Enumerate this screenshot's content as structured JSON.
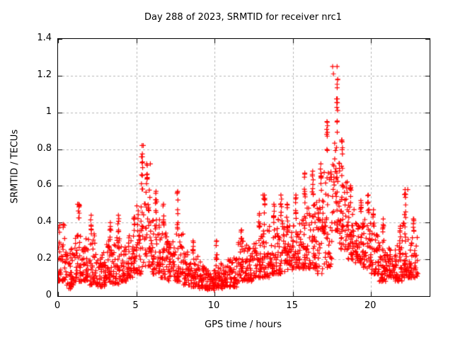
{
  "page": {
    "background": "#ffffff",
    "text_color": "#000000"
  },
  "chart_data": {
    "type": "scatter",
    "title": "Day 288 of 2023, SRMTID for receiver nrc1",
    "xlabel": "GPS time / hours",
    "ylabel": "SRMTID / TECUs",
    "xlim": [
      0,
      23.75
    ],
    "ylim": [
      0,
      1.4
    ],
    "xticks": [
      0,
      5,
      10,
      15,
      20
    ],
    "xtick_labels": [
      "0",
      "5",
      "10",
      "15",
      "20"
    ],
    "yticks": [
      0,
      0.2,
      0.4,
      0.6,
      0.8,
      1,
      1.2,
      1.4
    ],
    "ytick_labels": [
      "0",
      "0.2",
      "0.4",
      "0.6",
      "0.8",
      "1",
      "1.2",
      "1.4"
    ],
    "legend": "none",
    "grid": {
      "show": true,
      "style": "dashed",
      "color": "#b4b4b4",
      "at_xticks": [
        5,
        10,
        15,
        20
      ],
      "at_yticks": [
        0.2,
        0.4,
        0.6,
        0.8,
        1,
        1.2
      ]
    },
    "marker": {
      "shape": "plus",
      "color": "#ff0000",
      "size": 7,
      "line_width": 1.2
    },
    "series_name": "SRMTID",
    "data_time_span_hours": [
      0,
      23.0
    ],
    "notable_points": [
      {
        "t": 17.55,
        "v": 1.25,
        "note": "daily maximum"
      },
      {
        "t": 17.6,
        "v": 1.21
      },
      {
        "t": 5.45,
        "v": 0.82,
        "note": "morning peak"
      },
      {
        "t": 5.9,
        "v": 0.72
      },
      {
        "t": 22.35,
        "v": 0.58,
        "note": "late spike"
      },
      {
        "t": 13.1,
        "v": 0.55
      },
      {
        "t": 1.25,
        "v": 0.5
      }
    ],
    "envelope_bins": [
      {
        "t": 0.25,
        "lo": 0.08,
        "hi": 0.4,
        "n": 46
      },
      {
        "t": 0.75,
        "lo": 0.04,
        "hi": 0.26,
        "n": 42
      },
      {
        "t": 1.25,
        "lo": 0.08,
        "hi": 0.36,
        "peak": 0.5,
        "n": 42
      },
      {
        "t": 1.75,
        "lo": 0.08,
        "hi": 0.32,
        "n": 40
      },
      {
        "t": 2.25,
        "lo": 0.06,
        "hi": 0.34,
        "peak": 0.44,
        "n": 40
      },
      {
        "t": 2.75,
        "lo": 0.05,
        "hi": 0.26,
        "n": 40
      },
      {
        "t": 3.25,
        "lo": 0.07,
        "hi": 0.3,
        "peak": 0.4,
        "n": 40
      },
      {
        "t": 3.75,
        "lo": 0.06,
        "hi": 0.34,
        "peak": 0.44,
        "n": 40
      },
      {
        "t": 4.25,
        "lo": 0.08,
        "hi": 0.28,
        "n": 40
      },
      {
        "t": 4.75,
        "lo": 0.1,
        "hi": 0.34,
        "peak": 0.43,
        "n": 40
      },
      {
        "t": 5.25,
        "lo": 0.12,
        "hi": 0.52,
        "peak": 0.82,
        "n": 44
      },
      {
        "t": 5.75,
        "lo": 0.16,
        "hi": 0.58,
        "peak": 0.72,
        "n": 44
      },
      {
        "t": 6.25,
        "lo": 0.12,
        "hi": 0.44,
        "peak": 0.57,
        "n": 42
      },
      {
        "t": 6.75,
        "lo": 0.1,
        "hi": 0.36,
        "peak": 0.5,
        "n": 40
      },
      {
        "t": 7.25,
        "lo": 0.08,
        "hi": 0.3,
        "n": 40
      },
      {
        "t": 7.75,
        "lo": 0.08,
        "hi": 0.34,
        "peak": 0.57,
        "n": 40
      },
      {
        "t": 8.25,
        "lo": 0.06,
        "hi": 0.24,
        "n": 40
      },
      {
        "t": 8.75,
        "lo": 0.05,
        "hi": 0.22,
        "peak": 0.3,
        "n": 40
      },
      {
        "t": 9.25,
        "lo": 0.04,
        "hi": 0.19,
        "n": 40
      },
      {
        "t": 9.75,
        "lo": 0.03,
        "hi": 0.16,
        "n": 40
      },
      {
        "t": 10.25,
        "lo": 0.04,
        "hi": 0.18,
        "peak": 0.3,
        "n": 40
      },
      {
        "t": 10.75,
        "lo": 0.05,
        "hi": 0.2,
        "n": 40
      },
      {
        "t": 11.25,
        "lo": 0.05,
        "hi": 0.22,
        "n": 40
      },
      {
        "t": 11.75,
        "lo": 0.08,
        "hi": 0.3,
        "peak": 0.36,
        "n": 40
      },
      {
        "t": 12.25,
        "lo": 0.08,
        "hi": 0.28,
        "n": 40
      },
      {
        "t": 12.75,
        "lo": 0.1,
        "hi": 0.34,
        "peak": 0.45,
        "n": 40
      },
      {
        "t": 13.25,
        "lo": 0.1,
        "hi": 0.36,
        "peak": 0.55,
        "n": 40
      },
      {
        "t": 13.75,
        "lo": 0.12,
        "hi": 0.38,
        "peak": 0.5,
        "n": 40
      },
      {
        "t": 14.25,
        "lo": 0.12,
        "hi": 0.42,
        "peak": 0.55,
        "n": 42
      },
      {
        "t": 14.75,
        "lo": 0.14,
        "hi": 0.4,
        "peak": 0.5,
        "n": 42
      },
      {
        "t": 15.25,
        "lo": 0.15,
        "hi": 0.44,
        "peak": 0.55,
        "n": 42
      },
      {
        "t": 15.75,
        "lo": 0.15,
        "hi": 0.48,
        "peak": 0.67,
        "n": 42
      },
      {
        "t": 16.25,
        "lo": 0.15,
        "hi": 0.5,
        "peak": 0.68,
        "n": 42
      },
      {
        "t": 16.75,
        "lo": 0.12,
        "hi": 0.54,
        "peak": 0.72,
        "n": 42
      },
      {
        "t": 17.25,
        "lo": 0.15,
        "hi": 0.75,
        "peak": 0.95,
        "n": 44
      },
      {
        "t": 17.75,
        "lo": 0.35,
        "hi": 0.85,
        "peak": 1.25,
        "n": 46
      },
      {
        "t": 18.25,
        "lo": 0.25,
        "hi": 0.68,
        "peak": 0.85,
        "n": 44
      },
      {
        "t": 18.75,
        "lo": 0.2,
        "hi": 0.5,
        "peak": 0.6,
        "n": 42
      },
      {
        "t": 19.25,
        "lo": 0.18,
        "hi": 0.45,
        "peak": 0.52,
        "n": 42
      },
      {
        "t": 19.75,
        "lo": 0.15,
        "hi": 0.42,
        "peak": 0.55,
        "n": 40
      },
      {
        "t": 20.25,
        "lo": 0.12,
        "hi": 0.35,
        "peak": 0.47,
        "n": 40
      },
      {
        "t": 20.75,
        "lo": 0.08,
        "hi": 0.28,
        "peak": 0.42,
        "n": 40
      },
      {
        "t": 21.25,
        "lo": 0.1,
        "hi": 0.3,
        "n": 40
      },
      {
        "t": 21.75,
        "lo": 0.08,
        "hi": 0.28,
        "peak": 0.38,
        "n": 40
      },
      {
        "t": 22.25,
        "lo": 0.1,
        "hi": 0.4,
        "peak": 0.58,
        "n": 42
      },
      {
        "t": 22.75,
        "lo": 0.1,
        "hi": 0.32,
        "peak": 0.42,
        "n": 38
      }
    ]
  }
}
